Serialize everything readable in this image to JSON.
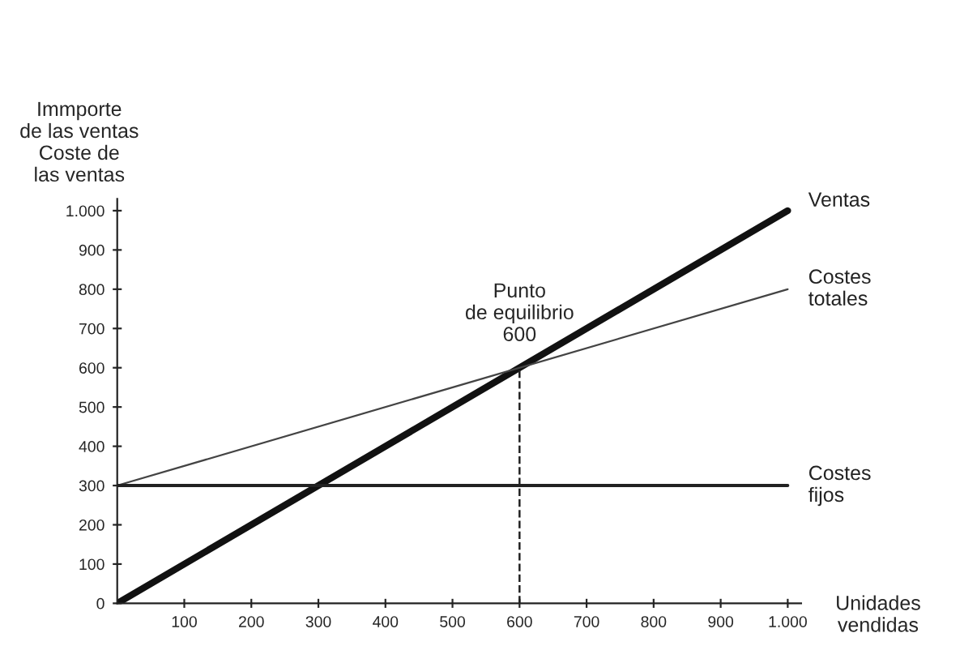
{
  "chart_data": {
    "type": "line",
    "xlabel": "Unidades\nvendidas",
    "ylabel": "Immporte\nde las ventas\nCoste de\nlas ventas",
    "x": [
      0,
      1000
    ],
    "xlim": [
      0,
      1020
    ],
    "ylim": [
      0,
      1030
    ],
    "xticks": [
      100,
      200,
      300,
      400,
      500,
      600,
      700,
      800,
      900,
      {
        "value": 1000,
        "label": "1.000"
      }
    ],
    "yticks": [
      0,
      100,
      200,
      300,
      400,
      500,
      600,
      700,
      800,
      900,
      {
        "value": 1000,
        "label": "1.000"
      }
    ],
    "series": [
      {
        "name": "Ventas",
        "color": "#111111",
        "values": [
          0,
          1000
        ]
      },
      {
        "name": "Costes\ntotales",
        "color": "#444444",
        "values": [
          300,
          800
        ]
      },
      {
        "name": "Costes\nfijos",
        "color": "#222222",
        "values": [
          300,
          300
        ]
      }
    ],
    "ref_lines": [
      {
        "axis": "x",
        "value": 600,
        "line_style": "dashed",
        "color": "#222222"
      }
    ],
    "annotations": [
      {
        "text": "Punto\nde equilibrio\n600",
        "x": 600,
        "y": 600
      }
    ],
    "grid": false,
    "legend": false,
    "marker": "none",
    "line_style": "solid"
  }
}
